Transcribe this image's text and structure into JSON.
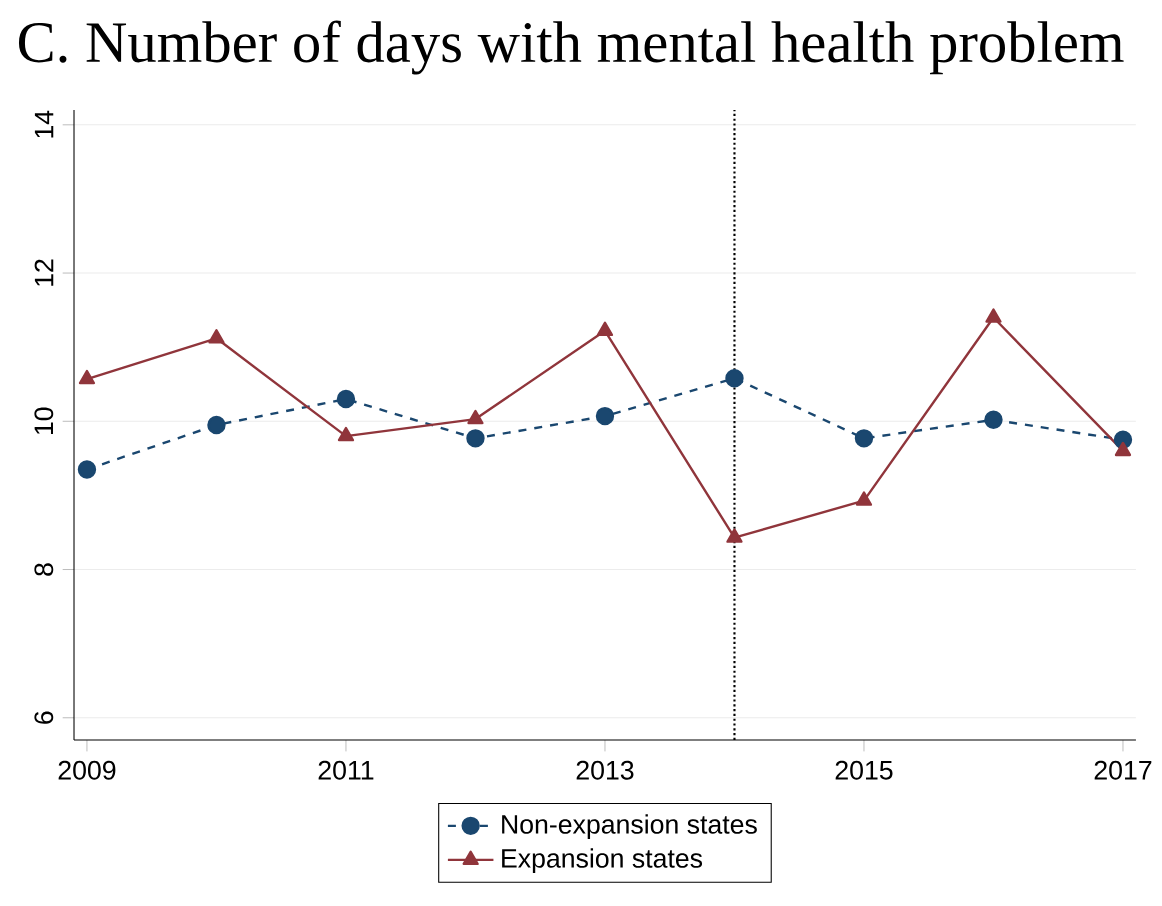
{
  "chart_data": {
    "type": "line",
    "title": "C. Number of days with mental health problem",
    "x": [
      2009,
      2010,
      2011,
      2012,
      2013,
      2014,
      2015,
      2016,
      2017
    ],
    "series": [
      {
        "name": "Non-expansion states",
        "color": "#1a476f",
        "marker": "circle",
        "line_style": "dashed",
        "values": [
          9.35,
          9.95,
          10.3,
          9.77,
          10.07,
          10.58,
          9.77,
          10.02,
          9.75
        ]
      },
      {
        "name": "Expansion states",
        "color": "#90353b",
        "marker": "triangle",
        "line_style": "solid",
        "values": [
          10.57,
          11.12,
          9.8,
          10.03,
          11.22,
          8.43,
          8.93,
          11.4,
          9.6
        ]
      }
    ],
    "xlim": [
      2008.9,
      2017.1
    ],
    "ylim": [
      5.7,
      14.2
    ],
    "xticks": [
      2009,
      2011,
      2013,
      2015,
      2017
    ],
    "yticks": [
      6,
      8,
      10,
      12,
      14
    ],
    "grid": "y",
    "legend": "bottom",
    "ref_lines": [
      {
        "axis": "x",
        "value": 2014,
        "line_style": "dotted",
        "color": "#000000"
      }
    ]
  }
}
